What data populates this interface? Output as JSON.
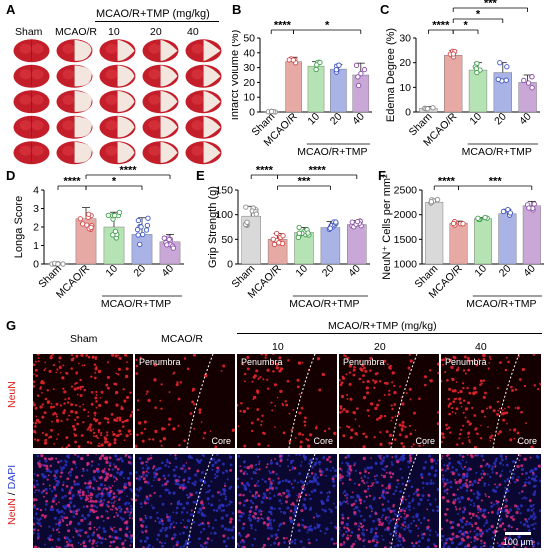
{
  "panel_letters": [
    "A",
    "B",
    "C",
    "D",
    "E",
    "F",
    "G"
  ],
  "panelA": {
    "header": "MCAO/R+TMP (mg/kg)",
    "groups": [
      "Sham",
      "MCAO/R",
      "10",
      "20",
      "40"
    ]
  },
  "colors": {
    "sham": "#d9d9d9",
    "mcao": "#e7a9a4",
    "d10": "#b6e3b4",
    "d20": "#a9b3e6",
    "d40": "#c9a8d8",
    "sham_pt": "#8c8c8c",
    "mcao_pt": "#d04b4b",
    "d10_pt": "#3e9e4a",
    "d20_pt": "#3f55c0",
    "d40_pt": "#8a4ea8"
  },
  "chart_data": [
    {
      "id": "B",
      "type": "bar",
      "categories": [
        "Sham",
        "MCAO/R",
        "10",
        "20",
        "40"
      ],
      "values": [
        0.3,
        34,
        31,
        29,
        25
      ],
      "errors": [
        0.3,
        3,
        3,
        3,
        8
      ],
      "ylabel": "Infarct Volume (%)",
      "ylim": [
        0,
        50
      ],
      "yticks": [
        "0",
        "10",
        "20",
        "30",
        "40",
        "50"
      ],
      "group_label": "MCAO/R+TMP",
      "sig": [
        {
          "text": "****",
          "from": 0,
          "to": 1,
          "level": 0
        },
        {
          "text": "*",
          "from": 1,
          "to": 4,
          "level": 0
        }
      ]
    },
    {
      "id": "C",
      "type": "bar",
      "categories": [
        "Sham",
        "MCAO/R",
        "10",
        "20",
        "40"
      ],
      "values": [
        1.5,
        23,
        17,
        16,
        12
      ],
      "errors": [
        0.7,
        2,
        3,
        4,
        3
      ],
      "ylabel": "Edema Degree (%)",
      "ylim": [
        0,
        30
      ],
      "yticks": [
        "0",
        "10",
        "20",
        "30"
      ],
      "group_label": "MCAO/R+TMP",
      "sig": [
        {
          "text": "****",
          "from": 0,
          "to": 1,
          "level": 0
        },
        {
          "text": "*",
          "from": 1,
          "to": 2,
          "level": 0
        },
        {
          "text": "*",
          "from": 1,
          "to": 3,
          "level": 1
        },
        {
          "text": "***",
          "from": 1,
          "to": 4,
          "level": 2
        }
      ]
    },
    {
      "id": "D",
      "type": "bar",
      "categories": [
        "Sham",
        "MCAO/R",
        "10",
        "20",
        "40"
      ],
      "values": [
        0,
        2.45,
        2.0,
        1.6,
        1.2
      ],
      "errors": [
        0,
        0.6,
        0.8,
        0.9,
        0.4
      ],
      "ylabel": "Longa Score",
      "ylim": [
        0,
        4
      ],
      "yticks": [
        "0",
        "1",
        "2",
        "3",
        "4"
      ],
      "group_label": "MCAO/R+TMP",
      "sig": [
        {
          "text": "****",
          "from": 0,
          "to": 1,
          "level": 0
        },
        {
          "text": "*",
          "from": 1,
          "to": 3,
          "level": 0
        },
        {
          "text": "****",
          "from": 1,
          "to": 4,
          "level": 1
        }
      ]
    },
    {
      "id": "E",
      "type": "bar",
      "categories": [
        "Sham",
        "MCAO/R",
        "10",
        "20",
        "40"
      ],
      "values": [
        97,
        50,
        64,
        74,
        80
      ],
      "errors": [
        20,
        12,
        10,
        12,
        8
      ],
      "ylabel": "Grip Strength (g)",
      "ylim": [
        0,
        150
      ],
      "yticks": [
        "0",
        "50",
        "100",
        "150"
      ],
      "group_label": "MCAO/R+TMP",
      "sig": [
        {
          "text": "****",
          "from": 0,
          "to": 1,
          "level": 1
        },
        {
          "text": "***",
          "from": 1,
          "to": 3,
          "level": 0
        },
        {
          "text": "****",
          "from": 1,
          "to": 4,
          "level": 1
        }
      ]
    },
    {
      "id": "F",
      "type": "bar",
      "categories": [
        "Sham",
        "MCAO/R",
        "10",
        "20",
        "40"
      ],
      "values": [
        2250,
        1830,
        1920,
        2020,
        2180
      ],
      "errors": [
        70,
        40,
        25,
        90,
        90
      ],
      "ylabel": "NeuN⁺ Cells per mm²",
      "ylim": [
        1000,
        2500
      ],
      "yticks": [
        "1000",
        "1500",
        "2000",
        "2500"
      ],
      "group_label": "MCAO/R+TMP",
      "sig": [
        {
          "text": "****",
          "from": 0,
          "to": 1,
          "level": 0
        },
        {
          "text": "***",
          "from": 1,
          "to": 4,
          "level": 0
        }
      ]
    }
  ],
  "panelG": {
    "header": "MCAO/R+TMP (mg/kg)",
    "columns": [
      "Sham",
      "MCAO/R",
      "10",
      "20",
      "40"
    ],
    "row_label_top": "NeuN",
    "row_label_bottom_a": "NeuN",
    "row_label_bottom_sep": " / ",
    "row_label_bottom_b": "DAPI",
    "penumbra": "Penumbra",
    "core": "Core",
    "scale": "100 μm"
  }
}
